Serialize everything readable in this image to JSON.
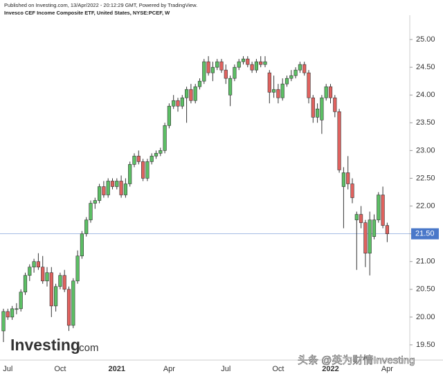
{
  "header": {
    "published": "Published on Investing.com, 13/Apr/2022 - 20:12:29 GMT, Powered by TradingView.",
    "instrument": "Invesco CEF Income Composite ETF, United States, NYSE:PCEF, W"
  },
  "watermark": {
    "brand": "Investing",
    "suffix": ".com",
    "source": "头条 @英为财情Investing"
  },
  "chart_data": {
    "type": "candlestick",
    "categories": [
      null,
      "Jul",
      null,
      null,
      null,
      null,
      null,
      null,
      null,
      null,
      null,
      null,
      null,
      "Oct",
      null,
      null,
      null,
      null,
      null,
      null,
      null,
      null,
      null,
      null,
      null,
      null,
      "2021",
      null,
      null,
      null,
      null,
      null,
      null,
      null,
      null,
      null,
      null,
      null,
      "Apr",
      null,
      null,
      null,
      null,
      null,
      null,
      null,
      null,
      null,
      null,
      null,
      null,
      "Jul",
      null,
      null,
      null,
      null,
      null,
      null,
      null,
      null,
      null,
      null,
      null,
      "Oct",
      null,
      null,
      null,
      null,
      null,
      null,
      null,
      null,
      null,
      null,
      null,
      "2022",
      null,
      null,
      null,
      null,
      null,
      null,
      null,
      null,
      null,
      null,
      null,
      null,
      "Apr"
    ],
    "open": [
      19.75,
      20.1,
      20.0,
      20.15,
      20.15,
      20.45,
      20.75,
      20.9,
      21.0,
      20.9,
      20.65,
      20.8,
      20.2,
      20.55,
      20.75,
      20.5,
      19.85,
      20.65,
      21.1,
      21.5,
      21.75,
      22.05,
      22.1,
      22.35,
      22.2,
      22.45,
      22.35,
      22.45,
      22.2,
      22.4,
      22.75,
      22.9,
      22.8,
      22.5,
      22.8,
      22.9,
      22.95,
      23.0,
      23.45,
      23.8,
      23.9,
      23.8,
      23.95,
      24.1,
      23.9,
      24.15,
      24.25,
      24.6,
      24.4,
      24.5,
      24.6,
      24.45,
      24.0,
      24.3,
      24.5,
      24.6,
      24.65,
      24.55,
      24.45,
      24.6,
      24.55,
      24.4,
      24.05,
      24.1,
      23.95,
      24.2,
      24.3,
      24.35,
      24.45,
      24.55,
      24.4,
      23.95,
      23.6,
      23.55,
      23.95,
      24.15,
      23.95,
      23.7,
      22.35,
      22.6,
      22.4,
      21.75,
      21.85,
      21.7,
      21.15,
      21.45,
      21.75,
      22.2,
      21.65
    ],
    "high": [
      20.15,
      20.15,
      20.2,
      20.25,
      20.5,
      20.8,
      20.95,
      21.05,
      21.15,
      21.1,
      20.9,
      20.9,
      20.6,
      20.8,
      20.85,
      20.55,
      20.7,
      21.2,
      21.55,
      21.8,
      22.1,
      22.15,
      22.4,
      22.45,
      22.5,
      22.5,
      22.5,
      22.55,
      22.5,
      22.8,
      22.95,
      23.0,
      22.85,
      22.85,
      22.95,
      23.0,
      23.05,
      23.5,
      23.85,
      24.0,
      23.95,
      24.0,
      24.15,
      24.2,
      24.2,
      24.3,
      24.65,
      24.7,
      24.6,
      24.65,
      24.65,
      24.55,
      24.35,
      24.55,
      24.65,
      24.7,
      24.7,
      24.6,
      24.65,
      24.7,
      24.7,
      24.45,
      24.35,
      24.2,
      24.3,
      24.35,
      24.45,
      24.5,
      24.6,
      24.6,
      24.45,
      24.0,
      23.85,
      24.0,
      24.2,
      24.2,
      24.0,
      23.75,
      22.7,
      22.9,
      22.5,
      21.9,
      22.0,
      21.75,
      21.9,
      21.85,
      22.25,
      22.35,
      21.7
    ],
    "low": [
      19.55,
      19.95,
      19.95,
      20.05,
      20.1,
      20.4,
      20.65,
      20.8,
      20.85,
      20.6,
      20.55,
      20.0,
      20.1,
      20.5,
      20.45,
      19.75,
      19.8,
      20.6,
      21.05,
      21.45,
      21.7,
      21.95,
      22.05,
      22.15,
      22.15,
      22.3,
      22.3,
      22.15,
      22.15,
      22.35,
      22.7,
      22.75,
      22.45,
      22.45,
      22.75,
      22.85,
      22.9,
      22.95,
      23.4,
      23.75,
      23.7,
      23.75,
      23.5,
      23.85,
      23.85,
      24.1,
      24.2,
      24.35,
      24.25,
      24.45,
      24.4,
      24.2,
      23.8,
      24.25,
      24.45,
      24.55,
      24.5,
      24.4,
      24.4,
      24.5,
      24.5,
      23.85,
      23.95,
      23.85,
      23.9,
      24.15,
      24.25,
      24.3,
      24.4,
      24.35,
      23.85,
      23.5,
      23.5,
      23.3,
      23.9,
      23.85,
      23.6,
      22.6,
      21.6,
      22.3,
      22.05,
      20.85,
      21.6,
      20.9,
      20.75,
      21.4,
      21.7,
      21.6,
      21.35
    ],
    "close": [
      20.1,
      20.0,
      20.15,
      20.15,
      20.45,
      20.75,
      20.9,
      21.0,
      20.9,
      20.65,
      20.8,
      20.2,
      20.55,
      20.75,
      20.5,
      19.85,
      20.65,
      21.1,
      21.5,
      21.75,
      22.05,
      22.1,
      22.35,
      22.2,
      22.45,
      22.35,
      22.45,
      22.2,
      22.4,
      22.75,
      22.9,
      22.8,
      22.5,
      22.8,
      22.9,
      22.95,
      23.0,
      23.45,
      23.8,
      23.9,
      23.8,
      23.95,
      24.1,
      23.9,
      24.15,
      24.25,
      24.6,
      24.4,
      24.5,
      24.6,
      24.45,
      24.3,
      24.3,
      24.5,
      24.6,
      24.65,
      24.55,
      24.45,
      24.6,
      24.55,
      24.6,
      24.05,
      24.1,
      23.95,
      24.2,
      24.3,
      24.35,
      24.45,
      24.55,
      24.4,
      23.95,
      23.6,
      23.75,
      23.95,
      24.15,
      23.95,
      23.7,
      22.65,
      22.6,
      22.4,
      22.15,
      21.85,
      21.7,
      21.15,
      21.75,
      21.75,
      22.2,
      21.65,
      21.5
    ],
    "up_color": "#5cbf65",
    "down_color": "#e0625f",
    "ylim": [
      19.25,
      25.4
    ],
    "yticks": [
      {
        "value": 19.5,
        "label": "19.50"
      },
      {
        "value": 20,
        "label": "20.00"
      },
      {
        "value": 20.5,
        "label": "20.50"
      },
      {
        "value": 21,
        "label": "21.00"
      },
      {
        "value": 21.5,
        "label": "21.50"
      },
      {
        "value": 22,
        "label": "22.00"
      },
      {
        "value": 22.5,
        "label": "22.50"
      },
      {
        "value": 23,
        "label": "23.00"
      },
      {
        "value": 23.5,
        "label": "23.50"
      },
      {
        "value": 24,
        "label": "24.00"
      },
      {
        "value": 24.5,
        "label": "24.50"
      },
      {
        "value": 25,
        "label": "25.00"
      }
    ],
    "last_price": {
      "value": 21.5,
      "label": "21.50",
      "color": "#4a78c9"
    }
  }
}
